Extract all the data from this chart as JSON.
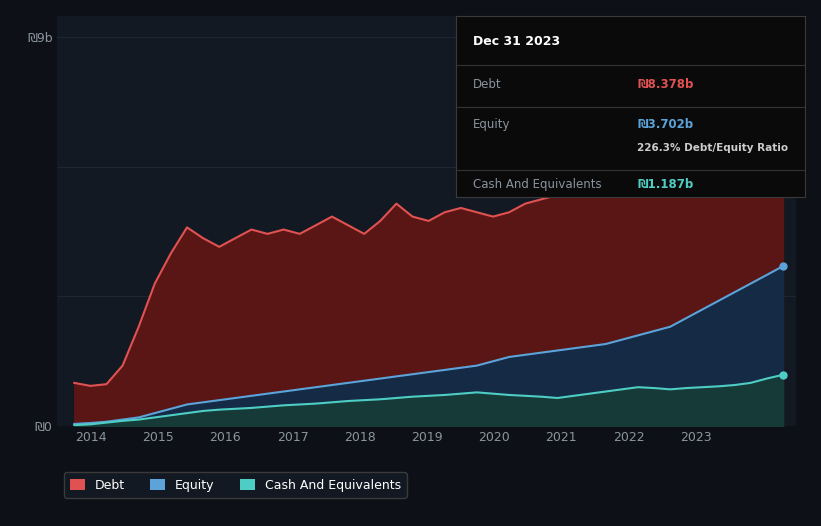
{
  "bg_color": "#0d1117",
  "plot_bg_color": "#131922",
  "grid_color": "#1e2733",
  "title_text": "Dec 31 2023",
  "tooltip": {
    "debt_label": "Debt",
    "debt_value": "₪8.378b",
    "equity_label": "Equity",
    "equity_value": "₪3.702b",
    "ratio_text": "226.3% Debt/Equity Ratio",
    "cash_label": "Cash And Equivalents",
    "cash_value": "₪1.187b"
  },
  "ylabel_top": "₪9b",
  "ylabel_bottom": "₪0",
  "x_ticks": [
    "2014",
    "2015",
    "2016",
    "2017",
    "2018",
    "2019",
    "2020",
    "2021",
    "2022",
    "2023"
  ],
  "legend": [
    {
      "label": "Debt",
      "color": "#e05252"
    },
    {
      "label": "Equity",
      "color": "#5ba3d9"
    },
    {
      "label": "Cash And Equivalents",
      "color": "#4ecdc4"
    }
  ],
  "debt_color": "#e05252",
  "equity_color": "#5ba3d9",
  "cash_color": "#4ecdc4",
  "debt_fill": "#5a1515",
  "equity_fill": "#152a45",
  "cash_fill": "#153a38",
  "debt": [
    1.0,
    0.93,
    0.97,
    1.4,
    2.3,
    3.3,
    4.0,
    4.6,
    4.35,
    4.15,
    4.35,
    4.55,
    4.45,
    4.55,
    4.45,
    4.65,
    4.85,
    4.65,
    4.45,
    4.75,
    5.15,
    4.85,
    4.75,
    4.95,
    5.05,
    4.95,
    4.85,
    4.95,
    5.15,
    5.25,
    5.35,
    5.55,
    5.75,
    5.95,
    6.1,
    6.3,
    6.1,
    5.8,
    6.1,
    6.3,
    6.5,
    7.6,
    7.85,
    8.1,
    8.378
  ],
  "equity": [
    0.05,
    0.07,
    0.1,
    0.15,
    0.2,
    0.3,
    0.4,
    0.5,
    0.55,
    0.6,
    0.65,
    0.7,
    0.75,
    0.8,
    0.85,
    0.9,
    0.95,
    1.0,
    1.05,
    1.1,
    1.15,
    1.2,
    1.25,
    1.3,
    1.35,
    1.4,
    1.5,
    1.6,
    1.65,
    1.7,
    1.75,
    1.8,
    1.85,
    1.9,
    2.0,
    2.1,
    2.2,
    2.3,
    2.5,
    2.7,
    2.9,
    3.1,
    3.3,
    3.5,
    3.702
  ],
  "cash": [
    0.02,
    0.04,
    0.08,
    0.12,
    0.15,
    0.2,
    0.25,
    0.3,
    0.35,
    0.38,
    0.4,
    0.42,
    0.45,
    0.48,
    0.5,
    0.52,
    0.55,
    0.58,
    0.6,
    0.62,
    0.65,
    0.68,
    0.7,
    0.72,
    0.75,
    0.78,
    0.75,
    0.72,
    0.7,
    0.68,
    0.65,
    0.7,
    0.75,
    0.8,
    0.85,
    0.9,
    0.88,
    0.85,
    0.88,
    0.9,
    0.92,
    0.95,
    1.0,
    1.1,
    1.187
  ],
  "ylim": [
    0,
    9.5
  ],
  "n_points": 45
}
